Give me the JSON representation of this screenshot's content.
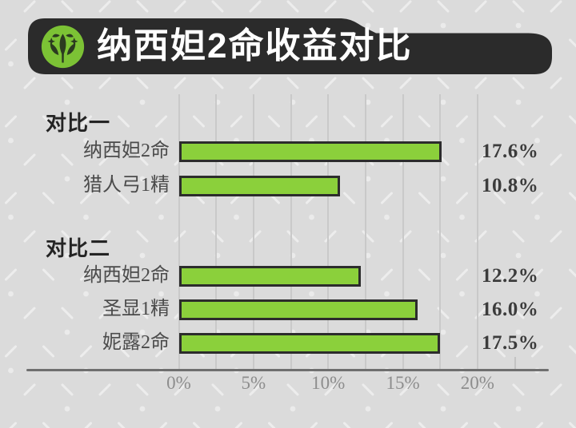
{
  "header": {
    "title": "纳西妲2命收益对比",
    "icon": "dendro-icon"
  },
  "colors": {
    "background": "#dbdbdb",
    "banner": "#2b2b2b",
    "icon_green": "#7cc235",
    "icon_symbol": "#2b3a20",
    "bar_fill": "#8bd03b",
    "bar_border": "#2c2c2c",
    "gridline": "#c9c9c9",
    "axis": "#6f6f6f",
    "tick_text": "#8d8d8d",
    "value_text": "#3c3c3c",
    "row_label_text": "#4b4b4b"
  },
  "chart_data": {
    "type": "bar",
    "orientation": "horizontal",
    "title": "纳西妲2命收益对比",
    "unit": "%",
    "axis": {
      "ticks": [
        "0%",
        "5%",
        "10%",
        "15%",
        "20%"
      ],
      "tick_values": [
        0,
        5,
        10,
        15,
        20
      ],
      "minor_step": 2.5,
      "min": 0,
      "max": 20,
      "grid": true,
      "extra_minor_tick": 22.5
    },
    "sections": [
      {
        "label": "对比一",
        "rows": [
          {
            "label": "纳西妲2命",
            "value": 17.6,
            "display": "17.6%"
          },
          {
            "label": "猎人弓1精",
            "value": 10.8,
            "display": "10.8%"
          }
        ]
      },
      {
        "label": "对比二",
        "rows": [
          {
            "label": "纳西妲2命",
            "value": 12.2,
            "display": "12.2%"
          },
          {
            "label": "圣显1精",
            "value": 16.0,
            "display": "16.0%"
          },
          {
            "label": "妮露2命",
            "value": 17.5,
            "display": "17.5%"
          }
        ]
      }
    ]
  }
}
